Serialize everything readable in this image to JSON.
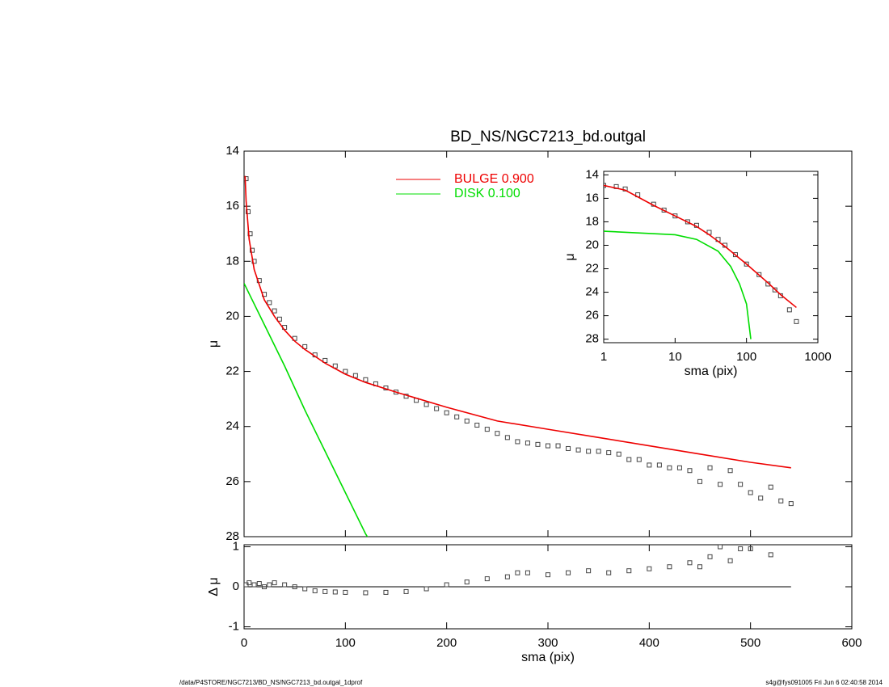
{
  "footer": {
    "left": "/data/P4STORE/NGC7213/BD_NS/NGC7213_bd.outgal_1dprof",
    "right": "s4g@fys091005  Fri Jun  6 02:40:58 2014"
  },
  "chart_data": [
    {
      "type": "scatter",
      "title": "BD_NS/NGC7213_bd.outgal",
      "ylabel": "μ",
      "xlim": [
        0,
        600
      ],
      "xticks": [
        0,
        100,
        200,
        300,
        400,
        500,
        600
      ],
      "xtick_labels": false,
      "ylim": [
        14,
        28
      ],
      "yticks": [
        14,
        16,
        18,
        20,
        22,
        24,
        26,
        28
      ],
      "yreverse": true,
      "xlog": false,
      "series": [
        {
          "style": "markers",
          "color": "#444444",
          "x": [
            2,
            4,
            6,
            8,
            10,
            15,
            20,
            25,
            30,
            35,
            40,
            50,
            60,
            70,
            80,
            90,
            100,
            110,
            120,
            130,
            140,
            150,
            160,
            170,
            180,
            190,
            200,
            210,
            220,
            230,
            240,
            250,
            260,
            270,
            280,
            290,
            300,
            310,
            320,
            330,
            340,
            350,
            360,
            370,
            380,
            390,
            400,
            410,
            420,
            430,
            440,
            450,
            460,
            470,
            480,
            490,
            500,
            510,
            520,
            530,
            540
          ],
          "values": [
            15.0,
            16.2,
            17.0,
            17.6,
            18.0,
            18.7,
            19.2,
            19.5,
            19.8,
            20.1,
            20.4,
            20.8,
            21.1,
            21.4,
            21.6,
            21.8,
            22.0,
            22.15,
            22.3,
            22.45,
            22.6,
            22.75,
            22.9,
            23.05,
            23.2,
            23.35,
            23.5,
            23.65,
            23.8,
            23.95,
            24.1,
            24.25,
            24.4,
            24.55,
            24.6,
            24.65,
            24.7,
            24.7,
            24.8,
            24.85,
            24.9,
            24.9,
            24.95,
            25.0,
            25.2,
            25.2,
            25.4,
            25.4,
            25.5,
            25.5,
            25.6,
            26.0,
            25.5,
            26.1,
            25.6,
            26.1,
            26.4,
            26.6,
            26.2,
            26.7,
            26.8
          ]
        },
        {
          "name": "BULGE  0.900",
          "style": "line",
          "color": "#ee0000",
          "x": [
            1,
            2,
            5,
            10,
            20,
            30,
            40,
            50,
            60,
            80,
            100,
            120,
            150,
            200,
            250,
            300,
            350,
            400,
            450,
            500,
            540
          ],
          "values": [
            14.9,
            15.8,
            17.2,
            18.3,
            19.4,
            20.0,
            20.5,
            20.9,
            21.2,
            21.7,
            22.1,
            22.4,
            22.75,
            23.3,
            23.8,
            24.1,
            24.4,
            24.7,
            25.0,
            25.3,
            25.5
          ]
        },
        {
          "name": "DISK  0.100",
          "style": "line",
          "color": "#00dd00",
          "x": [
            0,
            20,
            40,
            60,
            80,
            100,
            120,
            125
          ],
          "values": [
            18.8,
            20.3,
            21.8,
            23.4,
            24.9,
            26.4,
            27.9,
            28.2
          ]
        }
      ]
    },
    {
      "type": "scatter",
      "xlabel": "sma (pix)",
      "ylabel": "Δ μ",
      "xlim": [
        0,
        600
      ],
      "xticks": [
        0,
        100,
        200,
        300,
        400,
        500,
        600
      ],
      "ylim": [
        -1.05,
        1.05
      ],
      "yticks": [
        -1,
        0,
        1
      ],
      "yreverse": false,
      "xlog": false,
      "series": [
        {
          "style": "line",
          "color": "#000000",
          "x": [
            0,
            540
          ],
          "values": [
            0,
            0
          ]
        },
        {
          "style": "markers",
          "color": "#444444",
          "x": [
            2,
            5,
            10,
            15,
            20,
            25,
            30,
            40,
            50,
            60,
            70,
            80,
            90,
            100,
            120,
            140,
            160,
            180,
            200,
            220,
            240,
            260,
            270,
            280,
            300,
            320,
            340,
            360,
            380,
            400,
            420,
            440,
            450,
            460,
            470,
            480,
            490,
            500,
            520
          ],
          "values": [
            0.05,
            0.1,
            0.05,
            0.08,
            0.0,
            0.05,
            0.1,
            0.05,
            0.0,
            -0.05,
            -0.1,
            -0.12,
            -0.13,
            -0.14,
            -0.15,
            -0.14,
            -0.12,
            -0.05,
            0.05,
            0.12,
            0.2,
            0.25,
            0.35,
            0.35,
            0.3,
            0.35,
            0.4,
            0.35,
            0.4,
            0.45,
            0.5,
            0.6,
            0.5,
            0.75,
            1.0,
            0.65,
            0.95,
            0.95,
            0.8
          ]
        }
      ]
    },
    {
      "type": "scatter",
      "xlabel": "sma (pix)",
      "ylabel": "μ",
      "xlim": [
        1,
        1000
      ],
      "xticks": [
        1,
        10,
        100,
        1000
      ],
      "xlog": true,
      "ylim": [
        13.7,
        28.3
      ],
      "yticks": [
        14,
        16,
        18,
        20,
        22,
        24,
        26,
        28
      ],
      "yreverse": true,
      "series": [
        {
          "style": "markers",
          "color": "#444444",
          "x": [
            1,
            1.5,
            2,
            3,
            5,
            7,
            10,
            15,
            20,
            30,
            40,
            50,
            70,
            100,
            150,
            200,
            250,
            300,
            400,
            500
          ],
          "values": [
            14.9,
            15.0,
            15.2,
            15.7,
            16.5,
            17.0,
            17.5,
            18.0,
            18.3,
            18.9,
            19.5,
            20.0,
            20.8,
            21.6,
            22.5,
            23.3,
            23.8,
            24.3,
            25.5,
            26.5
          ]
        },
        {
          "style": "line",
          "color": "#ee0000",
          "x": [
            1,
            2,
            5,
            10,
            20,
            30,
            50,
            100,
            200,
            300,
            500
          ],
          "values": [
            14.9,
            15.3,
            16.6,
            17.5,
            18.4,
            19.1,
            20.1,
            21.6,
            23.2,
            24.2,
            25.3
          ]
        },
        {
          "style": "line",
          "color": "#00dd00",
          "x": [
            1,
            10,
            20,
            40,
            60,
            80,
            100,
            115
          ],
          "values": [
            18.8,
            19.1,
            19.5,
            20.5,
            21.8,
            23.3,
            25.0,
            28.0
          ]
        }
      ]
    }
  ]
}
